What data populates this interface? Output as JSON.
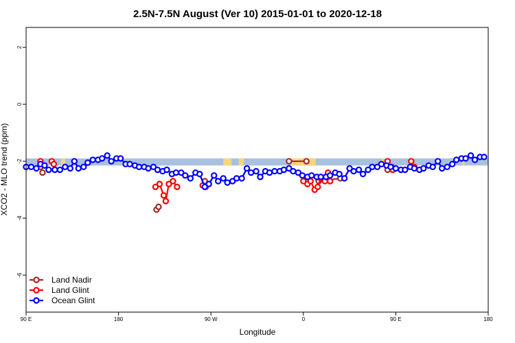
{
  "chart_data": {
    "type": "line",
    "title": "2.5N-7.5N August (Ver 10)   2015-01-01 to 2020-12-18",
    "xlabel": "Longitude",
    "ylabel": "XCO2 - MLO trend (ppm)",
    "x_tick_labels": [
      "90 E",
      "180",
      "90 W",
      "0",
      "90 E",
      "180"
    ],
    "x_tick_values": [
      90,
      180,
      270,
      360,
      450,
      540
    ],
    "y_tick_labels": [
      "-6",
      "-4",
      "-2",
      "0",
      "2"
    ],
    "y_tick_values": [
      -6,
      -4,
      -2,
      0,
      2
    ],
    "xlim": [
      90,
      540
    ],
    "ylim": [
      -7.3,
      2.7
    ],
    "grid": false,
    "legend_position": "bottom-left",
    "band": {
      "y_range": [
        -2.15,
        -1.9
      ],
      "ocean_color": "#a9c1e0",
      "land_color": "#f5d67b",
      "land_x_ranges": [
        [
          101,
          104
        ],
        [
          124,
          128
        ],
        [
          282,
          290
        ],
        [
          297,
          302
        ],
        [
          348,
          372
        ],
        [
          436,
          438
        ],
        [
          515,
          517
        ]
      ]
    },
    "series": [
      {
        "name": "Land Nadir",
        "color": "#a52a2a",
        "points": [
          [
            104,
            -2.2
          ],
          [
            106,
            -2.4
          ],
          [
            217,
            -3.7
          ],
          [
            219,
            -3.6
          ],
          [
            264,
            -2.7
          ],
          [
            346,
            -2.0
          ],
          [
            363,
            -2.0
          ],
          [
            375,
            -2.7
          ],
          [
            446,
            -2.2
          ],
          [
            442,
            -2.3
          ],
          [
            396,
            -2.6
          ]
        ],
        "path": [
          [
            [
              217,
              -3.7
            ],
            [
              219,
              -3.6
            ]
          ],
          [
            [
              346,
              -2.0
            ],
            [
              363,
              -2.0
            ]
          ],
          [
            [
              375,
              -2.7
            ],
            [
              396,
              -2.6
            ]
          ],
          [
            [
              442,
              -2.3
            ],
            [
              446,
              -2.2
            ]
          ]
        ]
      },
      {
        "name": "Land Glint",
        "color": "#ff0000",
        "points": [
          [
            104,
            -2.0
          ],
          [
            115,
            -2.0
          ],
          [
            117,
            -2.1
          ],
          [
            216,
            -2.9
          ],
          [
            220,
            -2.8
          ],
          [
            224,
            -3.2
          ],
          [
            226,
            -3.4
          ],
          [
            229,
            -2.8
          ],
          [
            233,
            -2.7
          ],
          [
            237,
            -2.9
          ],
          [
            262,
            -2.85
          ],
          [
            265,
            -2.9
          ],
          [
            360,
            -2.7
          ],
          [
            364,
            -2.8
          ],
          [
            367,
            -2.7
          ],
          [
            371,
            -3.0
          ],
          [
            374,
            -2.9
          ],
          [
            377,
            -2.6
          ],
          [
            381,
            -2.7
          ],
          [
            384,
            -2.4
          ],
          [
            386,
            -2.7
          ],
          [
            442,
            -2.0
          ],
          [
            447,
            -2.3
          ],
          [
            465,
            -2.0
          ],
          [
            468,
            -2.2
          ]
        ],
        "path": [
          [
            [
              216,
              -2.9
            ],
            [
              220,
              -2.8
            ],
            [
              224,
              -3.2
            ],
            [
              226,
              -3.4
            ],
            [
              229,
              -2.8
            ],
            [
              233,
              -2.7
            ],
            [
              237,
              -2.9
            ]
          ],
          [
            [
              360,
              -2.7
            ],
            [
              364,
              -2.8
            ],
            [
              367,
              -2.7
            ],
            [
              371,
              -3.0
            ],
            [
              374,
              -2.9
            ],
            [
              377,
              -2.6
            ],
            [
              381,
              -2.7
            ],
            [
              384,
              -2.4
            ],
            [
              386,
              -2.7
            ]
          ],
          [
            [
              104,
              -2.0
            ],
            [
              106,
              -2.1
            ]
          ],
          [
            [
              115,
              -2.0
            ],
            [
              117,
              -2.1
            ]
          ],
          [
            [
              465,
              -2.0
            ],
            [
              468,
              -2.2
            ]
          ]
        ]
      },
      {
        "name": "Ocean Glint",
        "color": "#0000ff",
        "points": [
          [
            90,
            -2.2
          ],
          [
            95,
            -2.2
          ],
          [
            100,
            -2.25
          ],
          [
            104,
            -2.1
          ],
          [
            108,
            -2.15
          ],
          [
            112,
            -2.3
          ],
          [
            118,
            -2.3
          ],
          [
            123,
            -2.3
          ],
          [
            128,
            -2.2
          ],
          [
            133,
            -2.25
          ],
          [
            137,
            -2.0
          ],
          [
            141,
            -2.25
          ],
          [
            146,
            -2.2
          ],
          [
            150,
            -2.05
          ],
          [
            155,
            -1.95
          ],
          [
            160,
            -1.95
          ],
          [
            164,
            -1.9
          ],
          [
            169,
            -1.8
          ],
          [
            173,
            -2.0
          ],
          [
            178,
            -1.9
          ],
          [
            182,
            -1.9
          ],
          [
            187,
            -2.1
          ],
          [
            191,
            -2.1
          ],
          [
            196,
            -2.15
          ],
          [
            200,
            -2.2
          ],
          [
            205,
            -2.2
          ],
          [
            209,
            -2.25
          ],
          [
            214,
            -2.2
          ],
          [
            218,
            -2.3
          ],
          [
            223,
            -2.35
          ],
          [
            227,
            -2.3
          ],
          [
            232,
            -2.45
          ],
          [
            236,
            -2.4
          ],
          [
            241,
            -2.4
          ],
          [
            245,
            -2.5
          ],
          [
            250,
            -2.6
          ],
          [
            255,
            -2.4
          ],
          [
            259,
            -2.45
          ],
          [
            264,
            -2.9
          ],
          [
            268,
            -2.8
          ],
          [
            273,
            -2.5
          ],
          [
            277,
            -2.7
          ],
          [
            282,
            -2.6
          ],
          [
            286,
            -2.75
          ],
          [
            291,
            -2.7
          ],
          [
            295,
            -2.6
          ],
          [
            300,
            -2.6
          ],
          [
            305,
            -2.25
          ],
          [
            309,
            -2.4
          ],
          [
            314,
            -2.35
          ],
          [
            318,
            -2.55
          ],
          [
            323,
            -2.35
          ],
          [
            327,
            -2.4
          ],
          [
            332,
            -2.35
          ],
          [
            337,
            -2.35
          ],
          [
            341,
            -2.3
          ],
          [
            346,
            -2.25
          ],
          [
            350,
            -2.35
          ],
          [
            355,
            -2.4
          ],
          [
            359,
            -2.5
          ],
          [
            364,
            -2.55
          ],
          [
            368,
            -2.5
          ],
          [
            373,
            -2.55
          ],
          [
            377,
            -2.55
          ],
          [
            382,
            -2.55
          ],
          [
            386,
            -2.5
          ],
          [
            391,
            -2.4
          ],
          [
            395,
            -2.45
          ],
          [
            400,
            -2.6
          ],
          [
            405,
            -2.25
          ],
          [
            409,
            -2.35
          ],
          [
            414,
            -2.3
          ],
          [
            418,
            -2.45
          ],
          [
            423,
            -2.3
          ],
          [
            427,
            -2.2
          ],
          [
            432,
            -2.2
          ],
          [
            436,
            -2.1
          ],
          [
            441,
            -2.15
          ],
          [
            445,
            -2.2
          ],
          [
            450,
            -2.25
          ],
          [
            455,
            -2.3
          ],
          [
            459,
            -2.3
          ],
          [
            464,
            -2.2
          ],
          [
            468,
            -2.25
          ],
          [
            473,
            -2.3
          ],
          [
            477,
            -2.25
          ],
          [
            482,
            -2.15
          ],
          [
            486,
            -2.2
          ],
          [
            491,
            -2.0
          ],
          [
            495,
            -2.25
          ],
          [
            500,
            -2.2
          ],
          [
            505,
            -2.1
          ],
          [
            509,
            -1.95
          ],
          [
            514,
            -1.9
          ],
          [
            518,
            -1.9
          ],
          [
            523,
            -1.8
          ],
          [
            527,
            -1.95
          ],
          [
            532,
            -1.85
          ],
          [
            536,
            -1.85
          ]
        ]
      }
    ]
  }
}
